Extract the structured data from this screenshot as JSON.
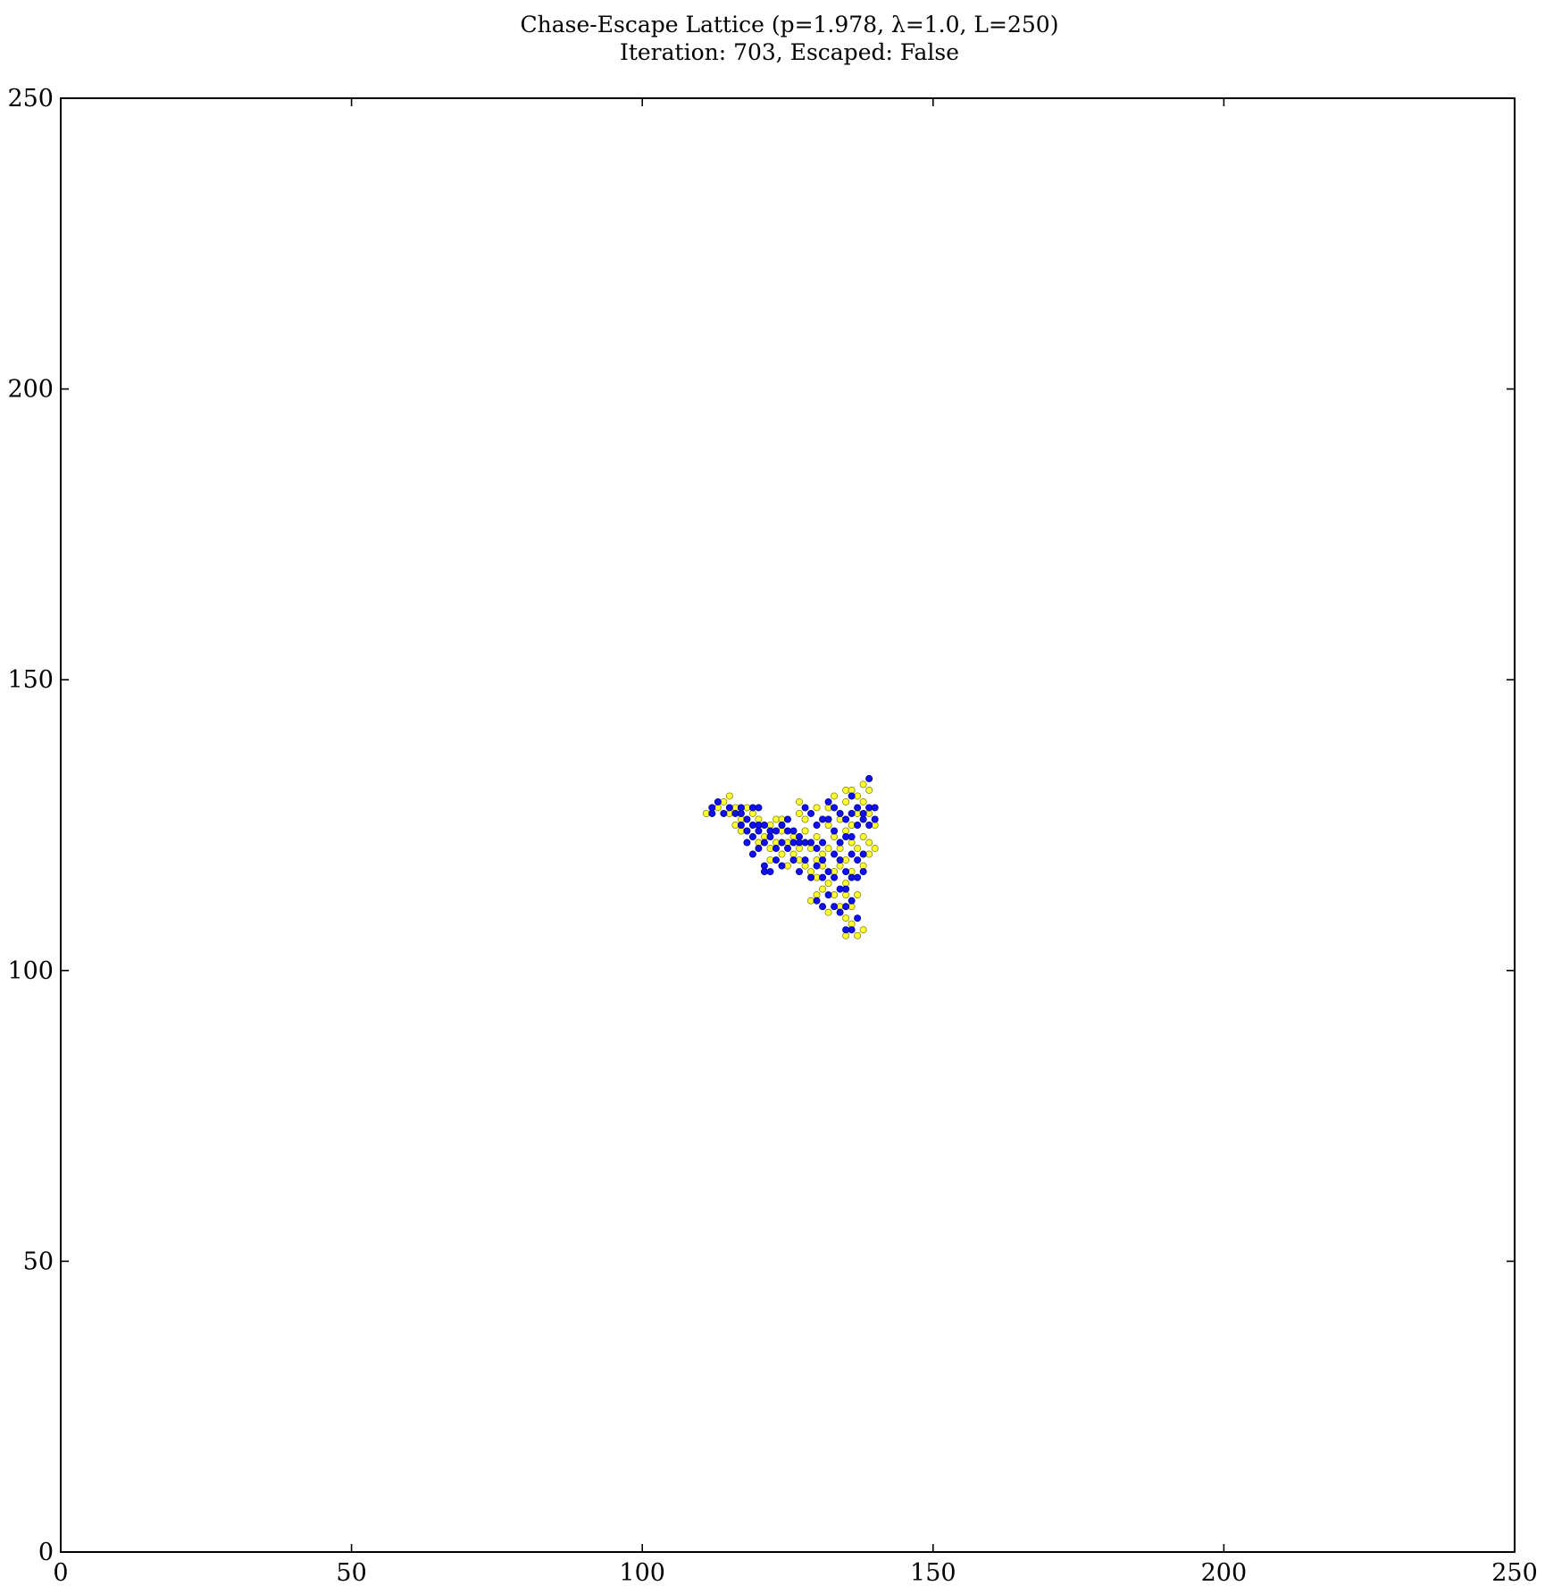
{
  "chart_data": {
    "type": "scatter",
    "title_line1": "Chase-Escape Lattice (p=1.978, λ=1.0, L=250)",
    "title_line2": "Iteration: 703, Escaped: False",
    "xlabel": "",
    "ylabel": "",
    "xlim": [
      0,
      250
    ],
    "ylim": [
      0,
      250
    ],
    "x_ticks": [
      "0",
      "50",
      "100",
      "150",
      "200",
      "250"
    ],
    "y_ticks": [
      "0",
      "50",
      "100",
      "150",
      "200",
      "250"
    ],
    "grid": false,
    "series": [
      {
        "color": "#ffff33",
        "edge_color": "#888800",
        "points": [
          [
            111,
            127
          ],
          [
            113,
            128
          ],
          [
            114,
            129
          ],
          [
            115,
            130
          ],
          [
            115,
            127
          ],
          [
            116,
            128
          ],
          [
            116,
            125
          ],
          [
            117,
            124
          ],
          [
            117,
            126
          ],
          [
            118,
            128
          ],
          [
            119,
            127
          ],
          [
            120,
            122
          ],
          [
            120,
            126
          ],
          [
            121,
            123
          ],
          [
            122,
            125
          ],
          [
            122,
            121
          ],
          [
            122,
            119
          ],
          [
            123,
            126
          ],
          [
            123,
            122
          ],
          [
            124,
            124
          ],
          [
            124,
            120
          ],
          [
            124,
            126
          ],
          [
            125,
            122
          ],
          [
            125,
            118
          ],
          [
            126,
            120
          ],
          [
            126,
            123
          ],
          [
            127,
            119
          ],
          [
            127,
            121
          ],
          [
            127,
            127
          ],
          [
            127,
            129
          ],
          [
            128,
            118
          ],
          [
            128,
            124
          ],
          [
            128,
            126
          ],
          [
            129,
            117
          ],
          [
            129,
            121
          ],
          [
            129,
            112
          ],
          [
            130,
            113
          ],
          [
            130,
            116
          ],
          [
            130,
            119
          ],
          [
            130,
            123
          ],
          [
            130,
            128
          ],
          [
            131,
            118
          ],
          [
            131,
            120
          ],
          [
            131,
            114
          ],
          [
            132,
            110
          ],
          [
            132,
            115
          ],
          [
            132,
            121
          ],
          [
            132,
            125
          ],
          [
            132,
            128
          ],
          [
            133,
            113
          ],
          [
            133,
            117
          ],
          [
            133,
            123
          ],
          [
            133,
            130
          ],
          [
            134,
            111
          ],
          [
            134,
            118
          ],
          [
            134,
            121
          ],
          [
            134,
            126
          ],
          [
            135,
            109
          ],
          [
            135,
            106
          ],
          [
            135,
            113
          ],
          [
            135,
            115
          ],
          [
            135,
            119
          ],
          [
            135,
            124
          ],
          [
            135,
            129
          ],
          [
            135,
            131
          ],
          [
            136,
            108
          ],
          [
            136,
            111
          ],
          [
            136,
            117
          ],
          [
            136,
            122
          ],
          [
            136,
            125
          ],
          [
            136,
            131
          ],
          [
            137,
            106
          ],
          [
            137,
            113
          ],
          [
            137,
            127
          ],
          [
            137,
            121
          ],
          [
            137,
            130
          ],
          [
            138,
            107
          ],
          [
            138,
            118
          ],
          [
            138,
            123
          ],
          [
            138,
            129
          ],
          [
            138,
            132
          ],
          [
            139,
            120
          ],
          [
            139,
            122
          ],
          [
            139,
            127
          ],
          [
            139,
            131
          ],
          [
            140,
            121
          ],
          [
            140,
            125
          ]
        ]
      },
      {
        "color": "#1010ee",
        "edge_color": "#000088",
        "points": [
          [
            112,
            128
          ],
          [
            112,
            127
          ],
          [
            113,
            129
          ],
          [
            114,
            127
          ],
          [
            115,
            128
          ],
          [
            116,
            127
          ],
          [
            117,
            128
          ],
          [
            117,
            127
          ],
          [
            117,
            125
          ],
          [
            118,
            126
          ],
          [
            118,
            124
          ],
          [
            118,
            122
          ],
          [
            119,
            128
          ],
          [
            119,
            125
          ],
          [
            119,
            123
          ],
          [
            119,
            120
          ],
          [
            120,
            128
          ],
          [
            120,
            125
          ],
          [
            120,
            124
          ],
          [
            120,
            121
          ],
          [
            121,
            125
          ],
          [
            121,
            122
          ],
          [
            121,
            118
          ],
          [
            121,
            117
          ],
          [
            122,
            124
          ],
          [
            122,
            123
          ],
          [
            122,
            117
          ],
          [
            123,
            124
          ],
          [
            123,
            121
          ],
          [
            123,
            119
          ],
          [
            124,
            125
          ],
          [
            124,
            122
          ],
          [
            124,
            118
          ],
          [
            125,
            126
          ],
          [
            125,
            124
          ],
          [
            125,
            121
          ],
          [
            126,
            124
          ],
          [
            126,
            122
          ],
          [
            126,
            119
          ],
          [
            127,
            123
          ],
          [
            127,
            122
          ],
          [
            127,
            117
          ],
          [
            128,
            128
          ],
          [
            128,
            122
          ],
          [
            128,
            119
          ],
          [
            129,
            127
          ],
          [
            129,
            122
          ],
          [
            129,
            116
          ],
          [
            130,
            125
          ],
          [
            130,
            121
          ],
          [
            130,
            118
          ],
          [
            130,
            112
          ],
          [
            131,
            126
          ],
          [
            131,
            122
          ],
          [
            131,
            119
          ],
          [
            131,
            116
          ],
          [
            131,
            111
          ],
          [
            132,
            129
          ],
          [
            132,
            126
          ],
          [
            132,
            117
          ],
          [
            132,
            113
          ],
          [
            133,
            128
          ],
          [
            133,
            124
          ],
          [
            133,
            120
          ],
          [
            133,
            116
          ],
          [
            133,
            111
          ],
          [
            134,
            127
          ],
          [
            134,
            122
          ],
          [
            134,
            119
          ],
          [
            134,
            114
          ],
          [
            134,
            110
          ],
          [
            135,
            126
          ],
          [
            135,
            123
          ],
          [
            135,
            117
          ],
          [
            135,
            114
          ],
          [
            135,
            111
          ],
          [
            135,
            107
          ],
          [
            136,
            130
          ],
          [
            136,
            127
          ],
          [
            136,
            123
          ],
          [
            136,
            120
          ],
          [
            136,
            116
          ],
          [
            136,
            112
          ],
          [
            136,
            107
          ],
          [
            137,
            128
          ],
          [
            137,
            125
          ],
          [
            137,
            119
          ],
          [
            137,
            116
          ],
          [
            137,
            109
          ],
          [
            138,
            127
          ],
          [
            138,
            126
          ],
          [
            138,
            120
          ],
          [
            138,
            117
          ],
          [
            139,
            133
          ],
          [
            139,
            128
          ],
          [
            139,
            125
          ],
          [
            140,
            128
          ],
          [
            140,
            126
          ]
        ]
      }
    ]
  }
}
